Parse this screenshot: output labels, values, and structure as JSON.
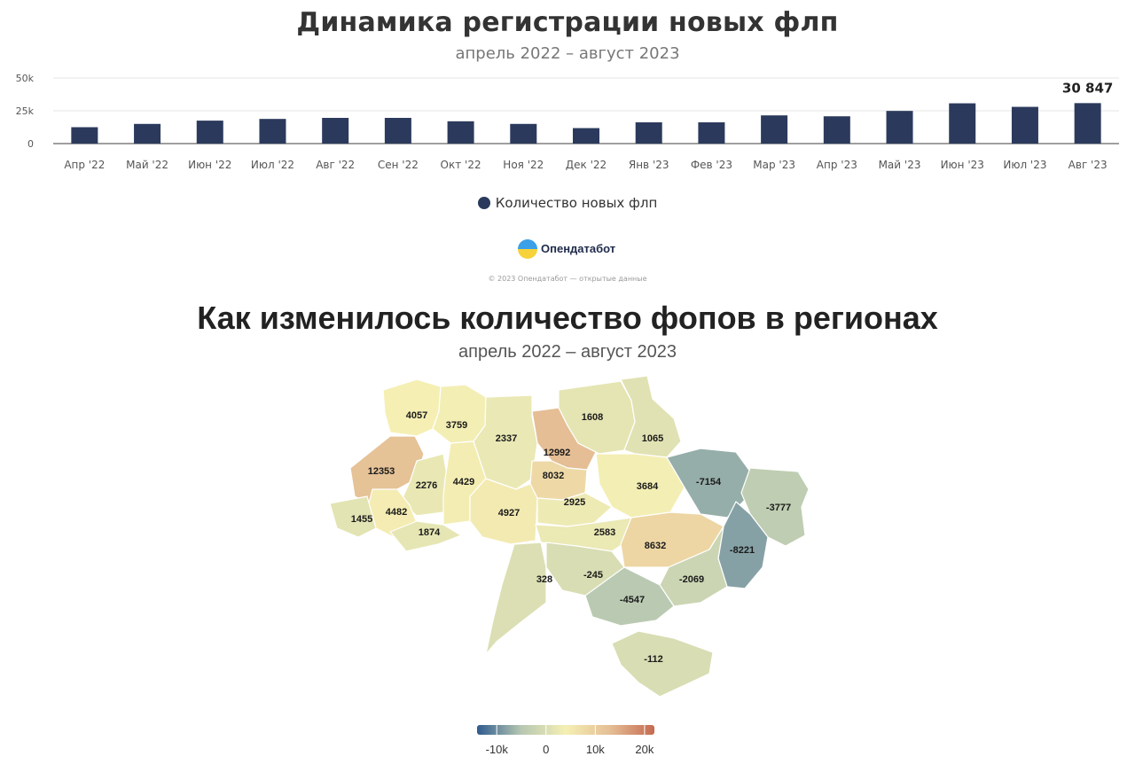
{
  "chart_data": [
    {
      "type": "bar",
      "title": "Динамика регистрации новых флп",
      "subtitle": "апрель 2022 – август 2023",
      "categories": [
        "Апр '22",
        "Май '22",
        "Июн '22",
        "Июл '22",
        "Авг '22",
        "Сен '22",
        "Окт '22",
        "Ноя '22",
        "Дек '22",
        "Янв '23",
        "Фев '23",
        "Мар '23",
        "Апр '23",
        "Май '23",
        "Июн '23",
        "Июл '23",
        "Авг '23"
      ],
      "series": [
        {
          "name": "Количество новых флп",
          "color": "#2b3a5c",
          "values": [
            12500,
            15000,
            17500,
            18800,
            19600,
            19600,
            17000,
            15000,
            11800,
            16200,
            16200,
            21500,
            20800,
            24900,
            30700,
            28000,
            30847
          ]
        }
      ],
      "y_ticks": [
        "0",
        "25k",
        "50k"
      ],
      "ylim": [
        0,
        50000
      ],
      "data_labels": [
        {
          "category": "Авг '23",
          "text": "30 847"
        }
      ],
      "legend": "bottom-center",
      "grid": true
    },
    {
      "type": "choropleth",
      "title": "Как изменилось количество фопов в регионах",
      "subtitle": "апрель 2022 – август 2023",
      "regions": [
        {
          "value": "4057",
          "number": 4057
        },
        {
          "value": "3759",
          "number": 3759
        },
        {
          "value": "2337",
          "number": 2337
        },
        {
          "value": "12992",
          "number": 12992
        },
        {
          "value": "1608",
          "number": 1608
        },
        {
          "value": "1065",
          "number": 1065
        },
        {
          "value": "12353",
          "number": 12353
        },
        {
          "value": "2276",
          "number": 2276
        },
        {
          "value": "4429",
          "number": 4429
        },
        {
          "value": "8032",
          "number": 8032
        },
        {
          "value": "3684",
          "number": 3684
        },
        {
          "value": "-7154",
          "number": -7154
        },
        {
          "value": "-3777",
          "number": -3777
        },
        {
          "value": "4482",
          "number": 4482
        },
        {
          "value": "1455",
          "number": 1455
        },
        {
          "value": "1874",
          "number": 1874
        },
        {
          "value": "4927",
          "number": 4927
        },
        {
          "value": "2925",
          "number": 2925
        },
        {
          "value": "2583",
          "number": 2583
        },
        {
          "value": "8632",
          "number": 8632
        },
        {
          "value": "-8221",
          "number": -8221
        },
        {
          "value": "328",
          "number": 328
        },
        {
          "value": "-245",
          "number": -245
        },
        {
          "value": "-2069",
          "number": -2069
        },
        {
          "value": "-4547",
          "number": -4547
        },
        {
          "value": "-112",
          "number": -112
        }
      ],
      "color_scale": {
        "min": -14000,
        "max": 22000,
        "stops": [
          "#2f5b8e",
          "#b7c8b2",
          "#f5efb4",
          "#e5be95",
          "#c46a50"
        ],
        "ticks": [
          {
            "label": "-10k",
            "value": -10000
          },
          {
            "label": "0",
            "value": 0
          },
          {
            "label": "10k",
            "value": 10000
          },
          {
            "label": "20k",
            "value": 20000
          }
        ]
      }
    }
  ],
  "brand": {
    "name": "Опендатабот",
    "copyright": "© 2023 Опендатабот — открытые данные"
  }
}
